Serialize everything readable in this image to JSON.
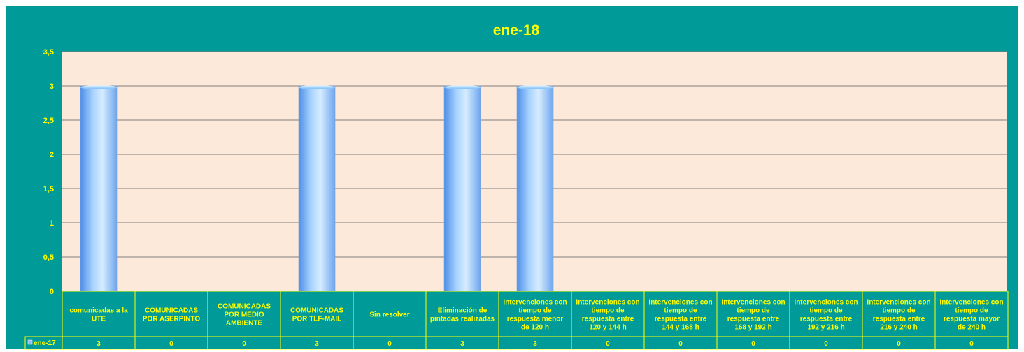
{
  "chart_data": {
    "type": "bar",
    "title": "ene-18",
    "categories": [
      [
        "comunicadas a la",
        "UTE"
      ],
      [
        "COMUNICADAS",
        "POR ASERPINTO"
      ],
      [
        "COMUNICADAS",
        "POR MEDIO",
        "AMBIENTE"
      ],
      [
        "COMUNICADAS",
        "POR TLF-MAIL"
      ],
      [
        "Sin resolver"
      ],
      [
        "Eliminación de",
        "pintadas realizadas"
      ],
      [
        "Intervenciones con",
        "tiempo de",
        "respuesta menor",
        "de 120 h"
      ],
      [
        "Intervenciones con",
        "tiempo de",
        "respuesta entre",
        "120 y 144 h"
      ],
      [
        "Intervenciones con",
        "tiempo de",
        "respuesta entre",
        "144 y 168 h"
      ],
      [
        "Intervenciones con",
        "tiempo de",
        "respuesta entre",
        "168 y 192 h"
      ],
      [
        "Intervenciones con",
        "tiempo de",
        "respuesta entre",
        "192 y 216 h"
      ],
      [
        "Intervenciones con",
        "tiempo de",
        "respuesta entre",
        "216 y 240 h"
      ],
      [
        "Intervenciones con",
        "tiempo de",
        "respuesta mayor",
        "de 240 h"
      ]
    ],
    "series": [
      {
        "name": "ene-17",
        "values": [
          3,
          0,
          0,
          3,
          0,
          3,
          3,
          0,
          0,
          0,
          0,
          0,
          0
        ]
      }
    ],
    "yticks": [
      "0",
      "0,5",
      "1",
      "1,5",
      "2",
      "2,5",
      "3",
      "3,5"
    ],
    "ylim": [
      0,
      3.5
    ],
    "grid": true,
    "legend": "data-table",
    "colors": {
      "frame": "#009B99",
      "plot_bg": "#FDE9D9",
      "text": "#FFFF00",
      "gridline": "#7F7F7F",
      "bar_light": "#D6ECFF",
      "bar_dark": "#4F8FE8"
    }
  }
}
